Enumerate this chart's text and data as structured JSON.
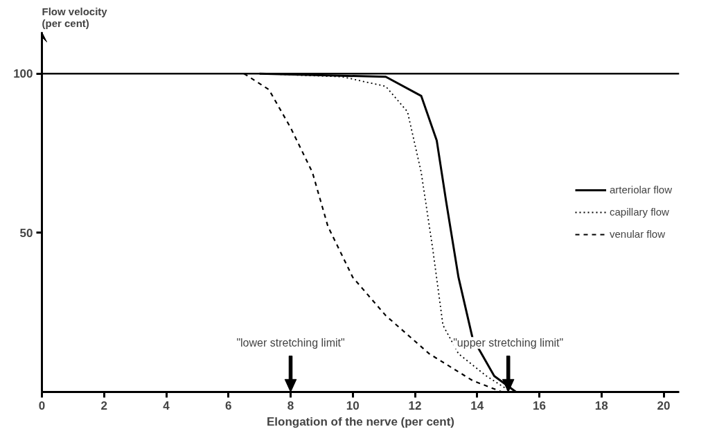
{
  "chart_data": {
    "type": "line",
    "ylabel": "Flow velocity\n(per cent)",
    "xlabel": "Elongation of the nerve (per cent)",
    "xlim": [
      0,
      20.5
    ],
    "ylim": [
      0,
      113
    ],
    "xticks": [
      0,
      2,
      4,
      6,
      8,
      10,
      12,
      14,
      16,
      18,
      20
    ],
    "yticks": [
      50,
      100
    ],
    "grid": false,
    "legend": "right",
    "ref_lines": [
      {
        "axis": "y",
        "value": 100
      },
      {
        "axis": "x",
        "value": 8,
        "label": "\"lower stretching limit\""
      },
      {
        "axis": "x",
        "value": 15,
        "label": "\"upper stretching limit\""
      }
    ],
    "series": [
      {
        "name": "arteriolar flow",
        "color": "#000000",
        "line_style": "solid",
        "x": [
          7,
          9,
          11.06,
          12.2,
          12.7,
          13.0,
          13.4,
          13.85,
          14.55,
          15.25
        ],
        "values": [
          100,
          99.5,
          99,
          93,
          79,
          60,
          36,
          17,
          5,
          0
        ]
      },
      {
        "name": "capillary flow",
        "color": "#000000",
        "line_style": "dotted",
        "x": [
          7,
          9.66,
          11.06,
          11.76,
          12.2,
          12.57,
          12.9,
          13.4,
          14.3,
          15.1
        ],
        "values": [
          100,
          99,
          96,
          88,
          69,
          45,
          21,
          12,
          5,
          0
        ]
      },
      {
        "name": "venular flow",
        "color": "#000000",
        "line_style": "dashed",
        "x": [
          6.5,
          7.3,
          8.0,
          8.7,
          9.2,
          10,
          11.06,
          12.46,
          13.85,
          14.8
        ],
        "values": [
          100,
          95,
          83,
          69,
          52,
          36,
          24,
          12,
          3.6,
          0
        ]
      }
    ]
  }
}
